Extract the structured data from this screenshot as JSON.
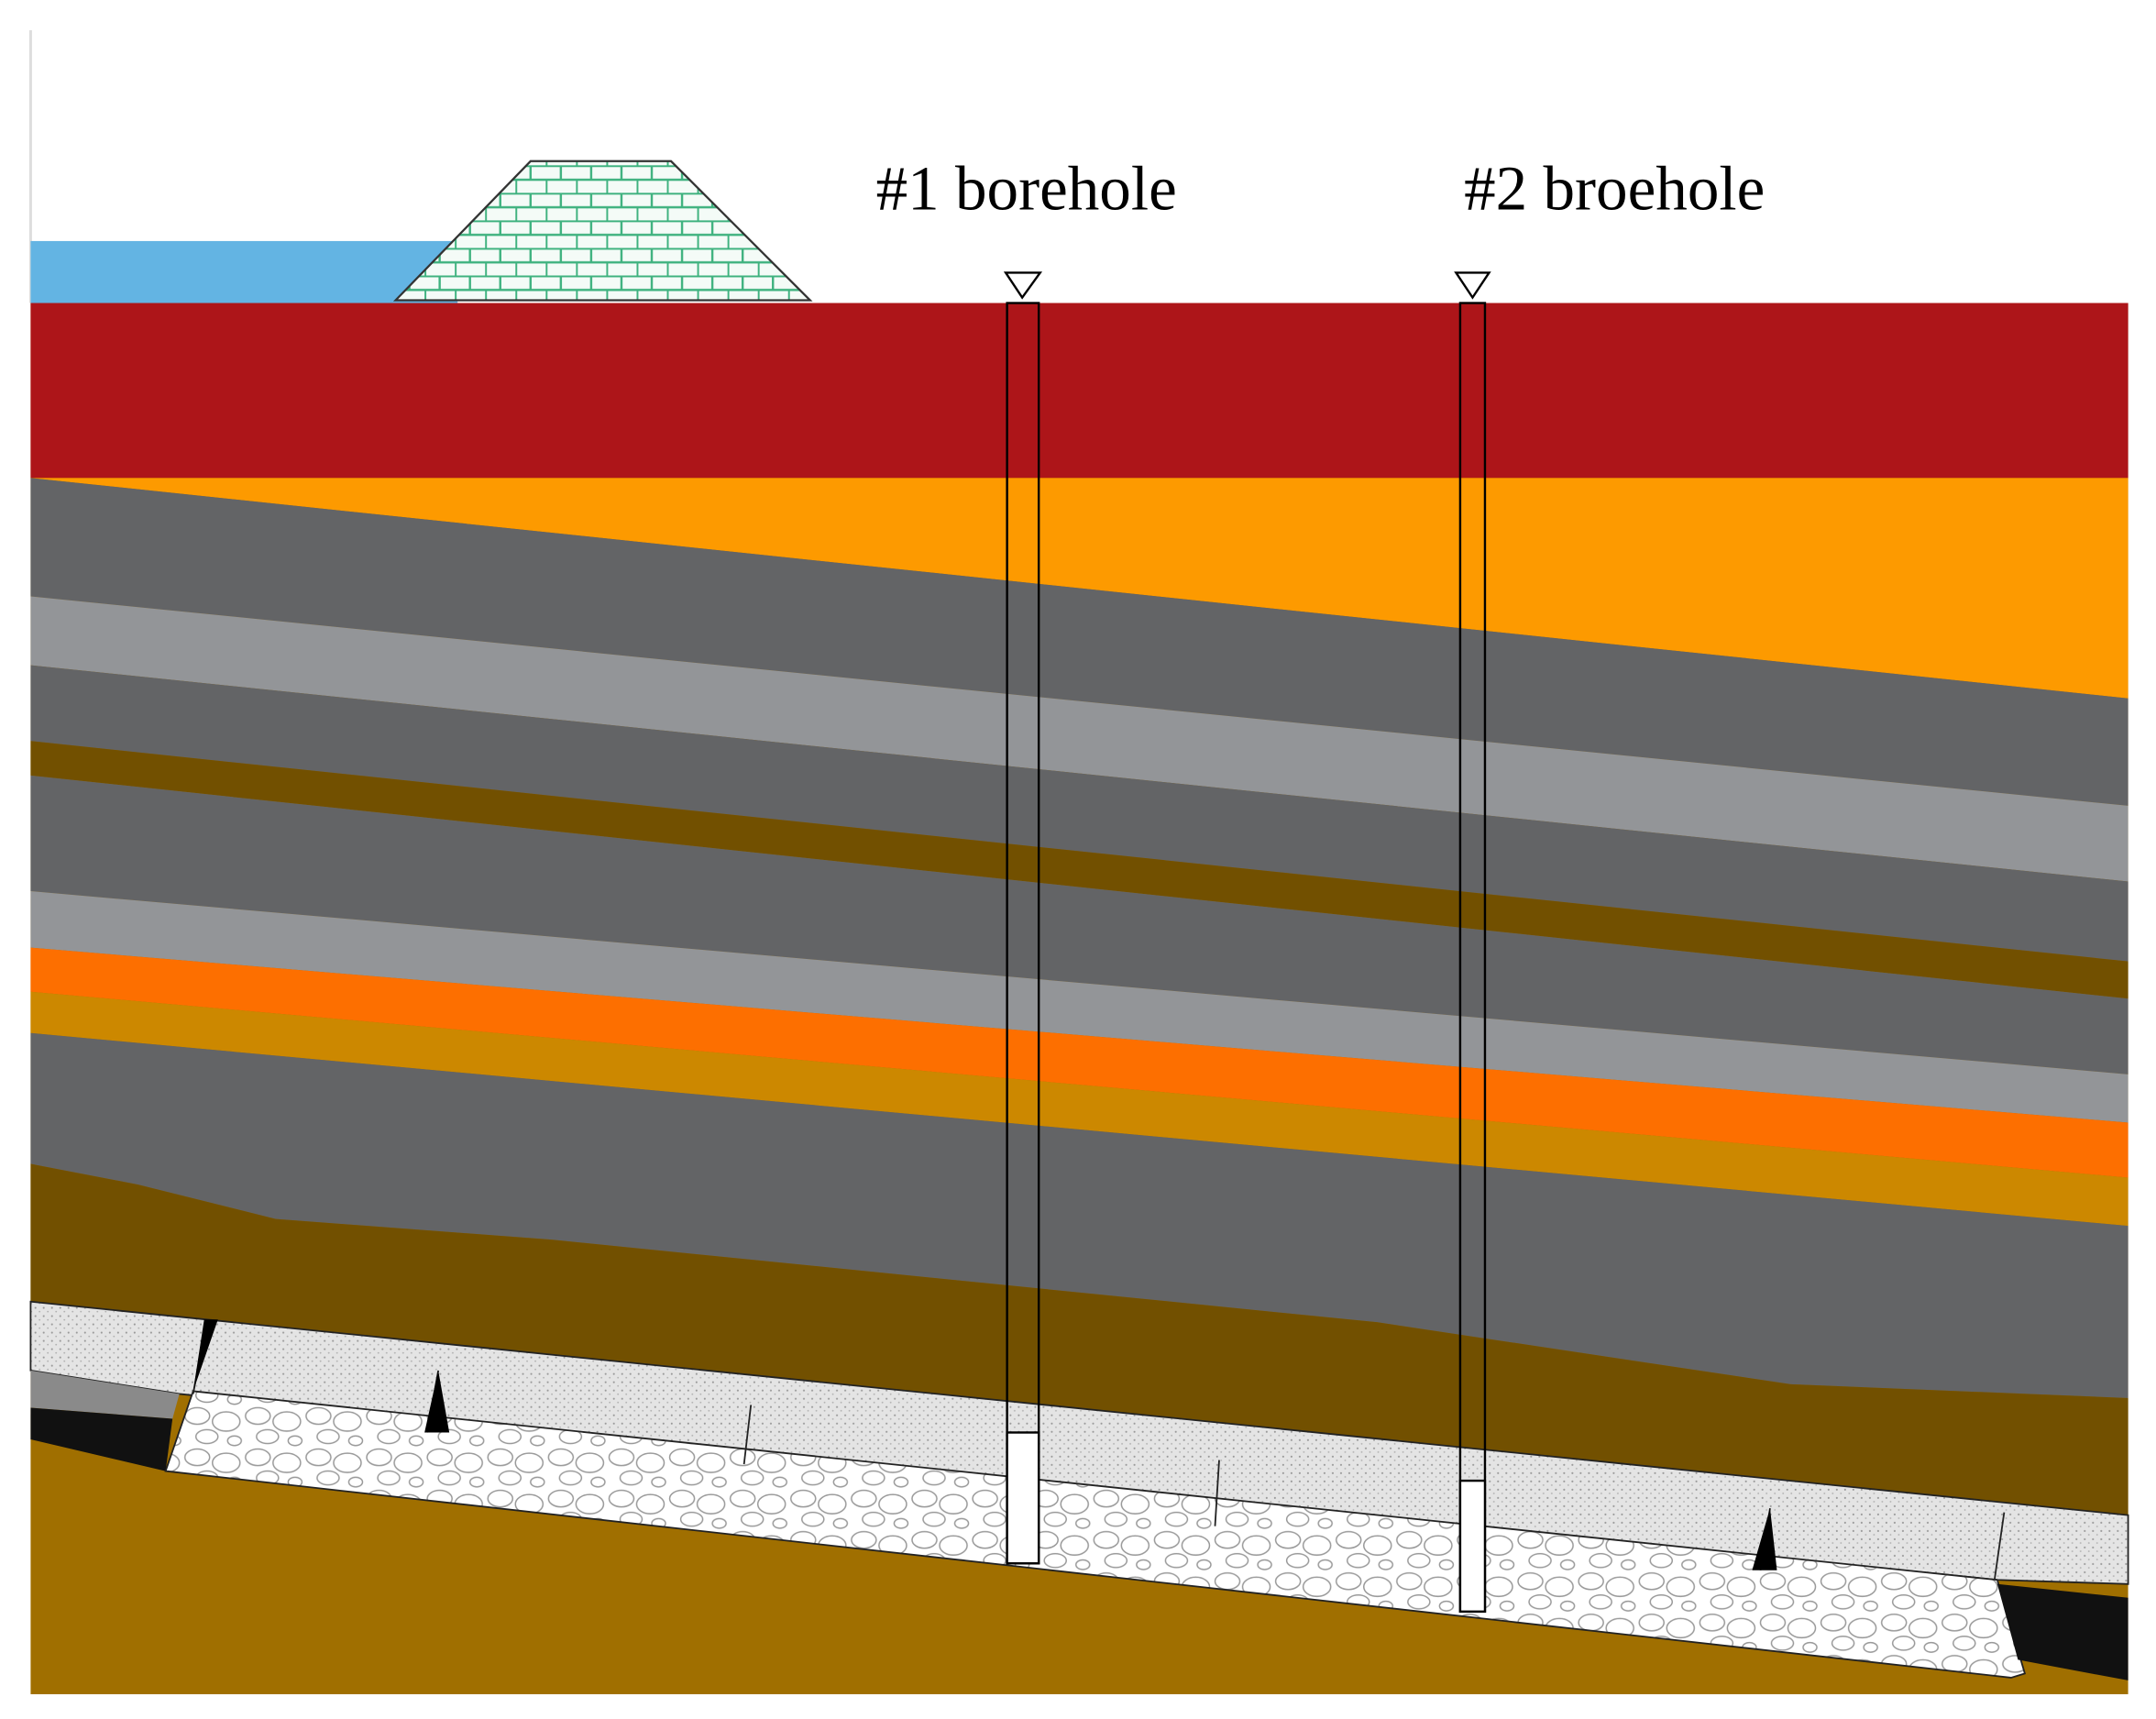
{
  "boreholes": [
    {
      "label": "#1 borehole"
    },
    {
      "label": "#2 broehole"
    }
  ]
}
